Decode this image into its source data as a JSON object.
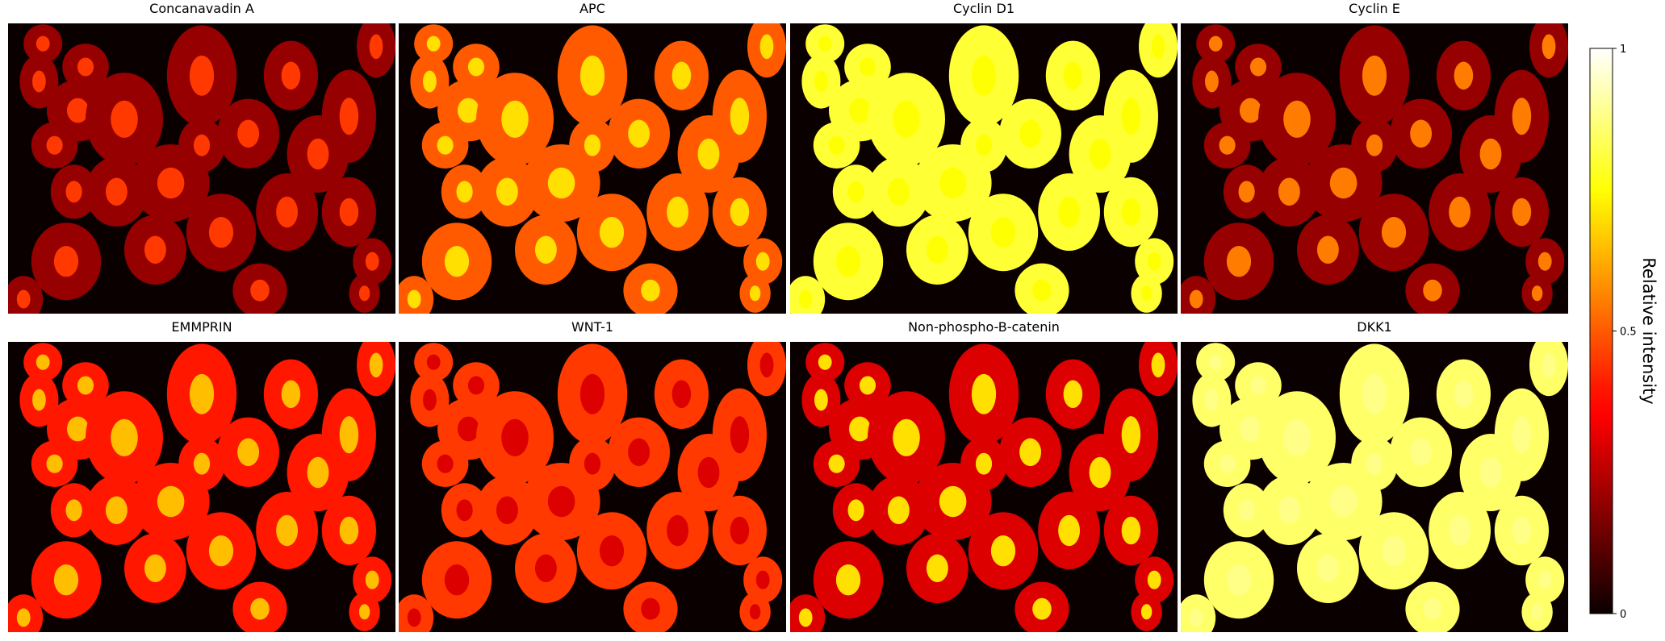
{
  "chart_data": {
    "type": "image-grid",
    "panels": [
      {
        "title": "Concanavadin A",
        "cell_intensity": 0.2,
        "nucleus_intensity": 0.45
      },
      {
        "title": "APC",
        "cell_intensity": 0.5,
        "nucleus_intensity": 0.7
      },
      {
        "title": "Cyclin D1",
        "cell_intensity": 0.8,
        "nucleus_intensity": 0.75
      },
      {
        "title": "Cyclin E",
        "cell_intensity": 0.2,
        "nucleus_intensity": 0.55
      },
      {
        "title": "EMMPRIN",
        "cell_intensity": 0.4,
        "nucleus_intensity": 0.65
      },
      {
        "title": "WNT-1",
        "cell_intensity": 0.45,
        "nucleus_intensity": 0.3
      },
      {
        "title": "Non-phospho-B-catenin",
        "cell_intensity": 0.3,
        "nucleus_intensity": 0.7
      },
      {
        "title": "DKK1",
        "cell_intensity": 0.85,
        "nucleus_intensity": 0.88
      }
    ],
    "colorbar": {
      "label": "Relative intensity",
      "colormap": "hot",
      "ylim": [
        0,
        1
      ],
      "yticks": [
        0,
        0.5,
        1
      ]
    }
  }
}
